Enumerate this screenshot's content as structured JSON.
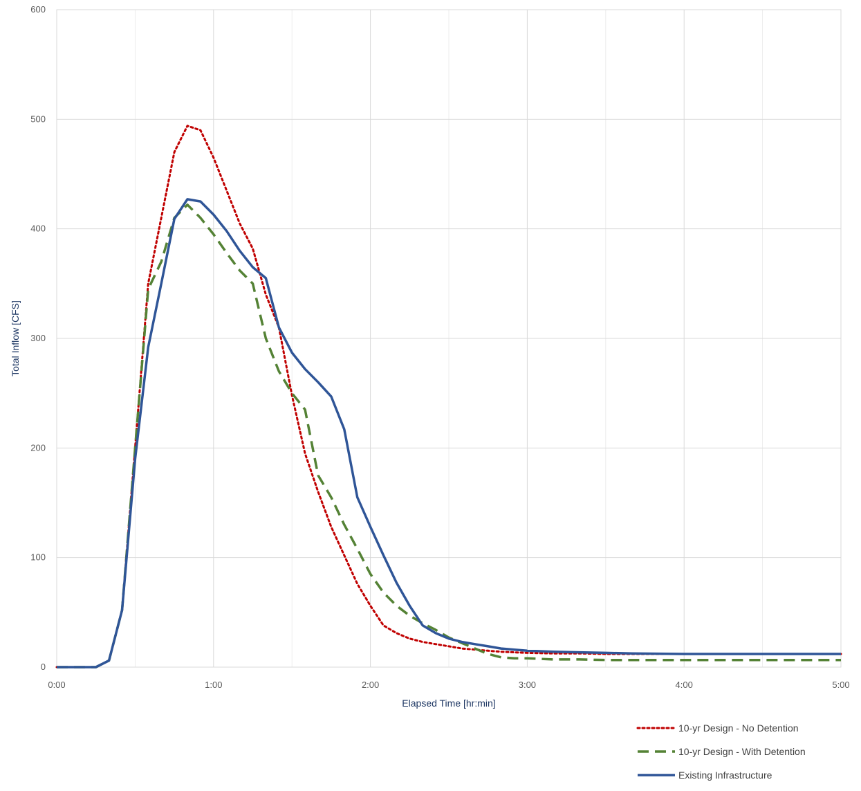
{
  "chart_data": {
    "type": "line",
    "xlabel": "Elapsed Time [hr:min]",
    "ylabel": "Total Inflow [CFS]",
    "xlim": [
      0,
      300
    ],
    "ylim": [
      0,
      600
    ],
    "x_ticks": [
      {
        "value": 0,
        "label": "0:00"
      },
      {
        "value": 60,
        "label": "1:00"
      },
      {
        "value": 120,
        "label": "2:00"
      },
      {
        "value": 180,
        "label": "3:00"
      },
      {
        "value": 240,
        "label": "4:00"
      },
      {
        "value": 300,
        "label": "5:00"
      }
    ],
    "y_ticks": [
      {
        "value": 0,
        "label": "0"
      },
      {
        "value": 100,
        "label": "100"
      },
      {
        "value": 200,
        "label": "200"
      },
      {
        "value": 300,
        "label": "300"
      },
      {
        "value": 400,
        "label": "400"
      },
      {
        "value": 500,
        "label": "500"
      },
      {
        "value": 600,
        "label": "600"
      }
    ],
    "grid": true,
    "legend_position": "bottom-right",
    "series": [
      {
        "name": "10-yr Design - No Detention",
        "color": "#c00000",
        "style": "dotted",
        "x": [
          0,
          5,
          10,
          15,
          20,
          25,
          30,
          35,
          40,
          45,
          50,
          55,
          60,
          65,
          70,
          75,
          80,
          85,
          90,
          95,
          100,
          105,
          110,
          115,
          120,
          125,
          130,
          135,
          140,
          145,
          150,
          155,
          160,
          165,
          170,
          175,
          180,
          190,
          200,
          210,
          220,
          240,
          260,
          280,
          300
        ],
        "y": [
          0,
          0,
          0,
          0,
          6,
          52,
          200,
          350,
          410,
          470,
          494,
          490,
          465,
          435,
          405,
          382,
          340,
          310,
          248,
          195,
          160,
          128,
          102,
          76,
          56,
          38,
          31,
          26,
          23,
          21,
          19,
          17,
          16,
          15,
          14,
          13.5,
          13,
          12.5,
          12.5,
          12,
          12,
          12,
          12,
          12,
          12
        ]
      },
      {
        "name": "10-yr Design - With Detention",
        "color": "#548235",
        "style": "dashed",
        "x": [
          0,
          5,
          10,
          15,
          20,
          25,
          30,
          35,
          40,
          45,
          50,
          55,
          60,
          65,
          70,
          75,
          80,
          85,
          90,
          95,
          100,
          105,
          110,
          115,
          120,
          125,
          130,
          135,
          140,
          145,
          150,
          155,
          160,
          165,
          170,
          175,
          180,
          190,
          200,
          210,
          220,
          240,
          260,
          280,
          300
        ],
        "y": [
          0,
          0,
          0,
          0,
          6,
          52,
          200,
          345,
          370,
          410,
          422,
          410,
          395,
          378,
          362,
          350,
          300,
          270,
          250,
          235,
          175,
          155,
          130,
          108,
          85,
          68,
          56,
          47,
          40,
          34,
          27,
          22,
          17,
          12,
          9,
          8,
          8,
          7,
          7,
          6.5,
          6.5,
          6.5,
          6.5,
          6.5,
          6.5
        ]
      },
      {
        "name": "Existing Infrastructure",
        "color": "#2f5597",
        "style": "solid",
        "x": [
          0,
          5,
          10,
          15,
          20,
          25,
          30,
          35,
          40,
          45,
          50,
          55,
          60,
          65,
          70,
          75,
          80,
          85,
          90,
          95,
          100,
          105,
          110,
          115,
          120,
          125,
          130,
          135,
          140,
          145,
          150,
          155,
          160,
          165,
          170,
          175,
          180,
          190,
          200,
          210,
          220,
          240,
          260,
          280,
          300
        ],
        "y": [
          0,
          0,
          0,
          0,
          6,
          52,
          190,
          292,
          350,
          409,
          427,
          425,
          413,
          398,
          380,
          365,
          355,
          310,
          287,
          272,
          260,
          247,
          217,
          155,
          128,
          102,
          77,
          56,
          38,
          31,
          26,
          23,
          21,
          19,
          17,
          16,
          15,
          14,
          13.5,
          13,
          12.5,
          12,
          12,
          12,
          12
        ]
      }
    ]
  }
}
